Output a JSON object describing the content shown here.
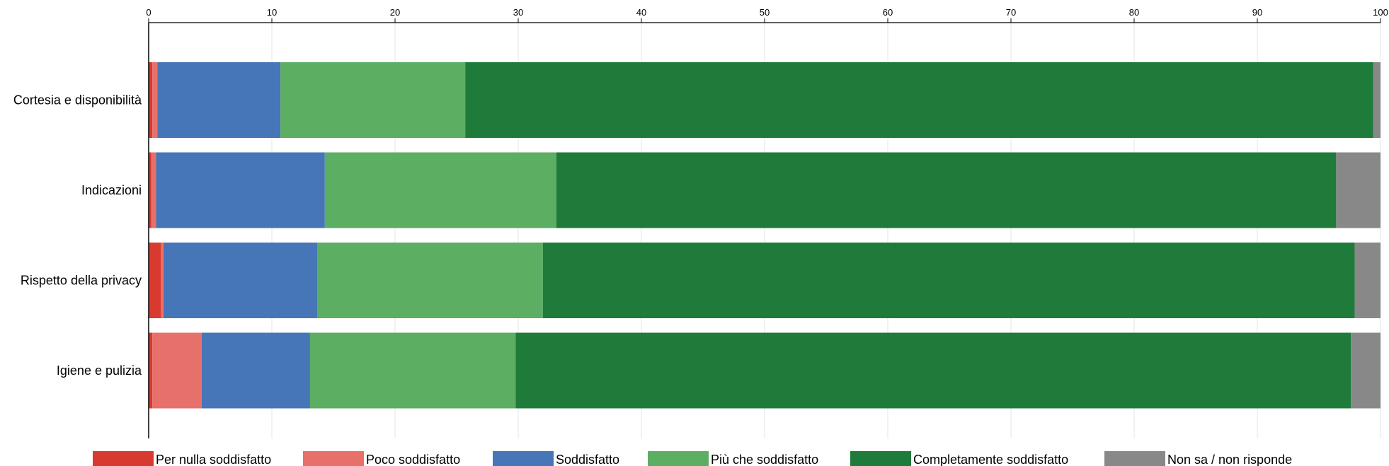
{
  "chart_data": {
    "type": "bar",
    "orientation": "horizontal",
    "stacked": true,
    "categories": [
      "Cortesia e disponibilità",
      "Indicazioni",
      "Rispetto della privacy",
      "Igiene e pulizia"
    ],
    "series": [
      {
        "name": "Per nulla soddisfatto",
        "color": "#d93a2f",
        "values": [
          0.3,
          0.2,
          1.0,
          0.3
        ]
      },
      {
        "name": "Poco soddisfatto",
        "color": "#e8706a",
        "values": [
          0.4,
          0.4,
          0.2,
          4.0
        ]
      },
      {
        "name": "Soddisfatto",
        "color": "#4675b8",
        "values": [
          10.0,
          13.7,
          12.5,
          8.8
        ]
      },
      {
        "name": "Più che soddisfatto",
        "color": "#5bae62",
        "values": [
          15.0,
          18.8,
          18.3,
          16.7
        ]
      },
      {
        "name": "Completamente soddisfatto",
        "color": "#1e7b3a",
        "values": [
          73.7,
          63.3,
          65.9,
          67.8
        ]
      },
      {
        "name": "Non sa / non risponde",
        "color": "#888888",
        "values": [
          0.6,
          3.6,
          2.1,
          2.4
        ]
      }
    ],
    "xlim": [
      0,
      100
    ],
    "xticks": [
      "0",
      "10",
      "20",
      "30",
      "40",
      "50",
      "60",
      "70",
      "80",
      "90",
      "100"
    ],
    "xaxis_position": "top",
    "grid": true,
    "legend_position": "bottom"
  }
}
